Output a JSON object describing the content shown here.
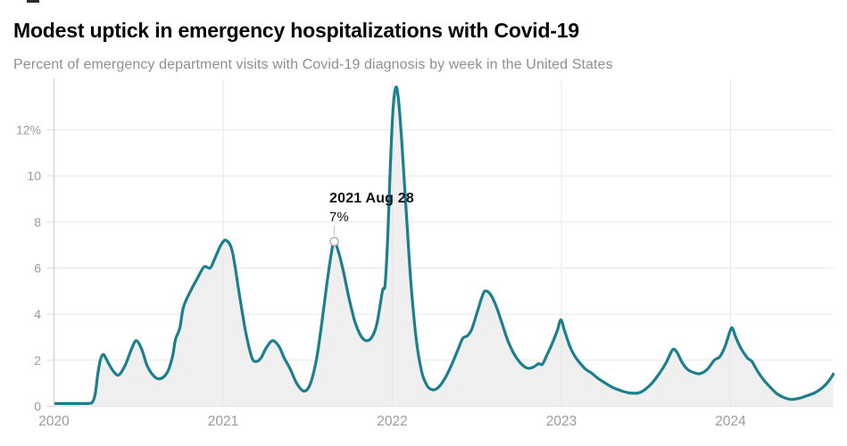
{
  "header": {
    "title": "Modest uptick in emergency hospitalizations with Covid-19",
    "subtitle": "Percent of emergency department visits with Covid-19 diagnosis by week in the United States"
  },
  "chart_data": {
    "type": "area",
    "title": "Modest uptick in emergency hospitalizations with Covid-19",
    "subtitle": "Percent of emergency department visits with Covid-19 diagnosis by week in the United States",
    "xlabel": "",
    "ylabel": "Percent of emergency department visits",
    "xlim": [
      2020.0,
      2024.62
    ],
    "ylim": [
      0,
      14
    ],
    "grid": true,
    "legend_position": "none",
    "x_ticks": [
      [
        2020,
        "2020"
      ],
      [
        2021,
        "2021"
      ],
      [
        2022,
        "2022"
      ],
      [
        2023,
        "2023"
      ],
      [
        2024,
        "2024"
      ]
    ],
    "y_ticks": [
      [
        0,
        "0"
      ],
      [
        2,
        "2"
      ],
      [
        4,
        "4"
      ],
      [
        6,
        "6"
      ],
      [
        8,
        "8"
      ],
      [
        10,
        "10"
      ],
      [
        12,
        "12%"
      ]
    ],
    "colors": {
      "line": "#1b7f8e",
      "fill": "#efefef",
      "grid": "#e7e7e7",
      "axis": "#cfcfcf",
      "baseline": "#dcdcdc",
      "tick_text": "#9b9b9b",
      "marker_stroke": "#ababab",
      "annotation_text": "#131313"
    },
    "annotation": {
      "date": "2021 Aug 28",
      "value_label": "7%",
      "x": 2021.657,
      "value_pct": 7
    },
    "series": [
      {
        "name": "Percent of ED visits with Covid-19 diagnosis",
        "points": [
          [
            2020.01,
            0.12
          ],
          [
            2020.1,
            0.12
          ],
          [
            2020.19,
            0.12
          ],
          [
            2020.211,
            0.13
          ],
          [
            2020.227,
            0.18
          ],
          [
            2020.243,
            0.5
          ],
          [
            2020.259,
            1.4
          ],
          [
            2020.274,
            2.0
          ],
          [
            2020.29,
            2.25
          ],
          [
            2020.306,
            2.1
          ],
          [
            2020.327,
            1.8
          ],
          [
            2020.359,
            1.45
          ],
          [
            2020.385,
            1.37
          ],
          [
            2020.422,
            1.8
          ],
          [
            2020.459,
            2.5
          ],
          [
            2020.486,
            2.85
          ],
          [
            2020.517,
            2.5
          ],
          [
            2020.549,
            1.8
          ],
          [
            2020.58,
            1.4
          ],
          [
            2020.612,
            1.2
          ],
          [
            2020.644,
            1.25
          ],
          [
            2020.675,
            1.55
          ],
          [
            2020.702,
            2.2
          ],
          [
            2020.718,
            2.9
          ],
          [
            2020.744,
            3.4
          ],
          [
            2020.765,
            4.3
          ],
          [
            2020.807,
            5.0
          ],
          [
            2020.844,
            5.5
          ],
          [
            2020.887,
            6.05
          ],
          [
            2020.923,
            6.0
          ],
          [
            2020.95,
            6.4
          ],
          [
            2020.987,
            7.0
          ],
          [
            2021.018,
            7.2
          ],
          [
            2021.055,
            6.7
          ],
          [
            2021.098,
            4.75
          ],
          [
            2021.134,
            3.2
          ],
          [
            2021.171,
            2.1
          ],
          [
            2021.198,
            1.95
          ],
          [
            2021.224,
            2.1
          ],
          [
            2021.256,
            2.55
          ],
          [
            2021.293,
            2.85
          ],
          [
            2021.33,
            2.6
          ],
          [
            2021.361,
            2.1
          ],
          [
            2021.398,
            1.6
          ],
          [
            2021.435,
            1.0
          ],
          [
            2021.477,
            0.66
          ],
          [
            2021.514,
            0.95
          ],
          [
            2021.551,
            2.0
          ],
          [
            2021.583,
            3.6
          ],
          [
            2021.615,
            5.4
          ],
          [
            2021.641,
            6.7
          ],
          [
            2021.657,
            7.15
          ],
          [
            2021.678,
            6.8
          ],
          [
            2021.71,
            5.9
          ],
          [
            2021.741,
            4.8
          ],
          [
            2021.778,
            3.7
          ],
          [
            2021.815,
            3.05
          ],
          [
            2021.847,
            2.85
          ],
          [
            2021.879,
            3.0
          ],
          [
            2021.91,
            3.6
          ],
          [
            2021.942,
            5.0
          ],
          [
            2021.958,
            5.3
          ],
          [
            2021.974,
            7.5
          ],
          [
            2021.989,
            10.5
          ],
          [
            2022.005,
            12.9
          ],
          [
            2022.021,
            13.85
          ],
          [
            2022.037,
            13.3
          ],
          [
            2022.058,
            11.3
          ],
          [
            2022.084,
            8.3
          ],
          [
            2022.111,
            5.3
          ],
          [
            2022.142,
            2.9
          ],
          [
            2022.174,
            1.5
          ],
          [
            2022.206,
            0.9
          ],
          [
            2022.237,
            0.72
          ],
          [
            2022.269,
            0.8
          ],
          [
            2022.306,
            1.15
          ],
          [
            2022.348,
            1.75
          ],
          [
            2022.385,
            2.4
          ],
          [
            2022.417,
            2.95
          ],
          [
            2022.443,
            3.05
          ],
          [
            2022.47,
            3.35
          ],
          [
            2022.507,
            4.2
          ],
          [
            2022.538,
            4.9
          ],
          [
            2022.559,
            5.0
          ],
          [
            2022.586,
            4.8
          ],
          [
            2022.617,
            4.3
          ],
          [
            2022.649,
            3.6
          ],
          [
            2022.681,
            2.9
          ],
          [
            2022.718,
            2.3
          ],
          [
            2022.755,
            1.9
          ],
          [
            2022.786,
            1.7
          ],
          [
            2022.813,
            1.65
          ],
          [
            2022.839,
            1.72
          ],
          [
            2022.865,
            1.85
          ],
          [
            2022.887,
            1.82
          ],
          [
            2022.913,
            2.2
          ],
          [
            2022.944,
            2.7
          ],
          [
            2022.976,
            3.3
          ],
          [
            2022.997,
            3.75
          ],
          [
            2023.018,
            3.3
          ],
          [
            2023.05,
            2.6
          ],
          [
            2023.082,
            2.15
          ],
          [
            2023.113,
            1.85
          ],
          [
            2023.145,
            1.6
          ],
          [
            2023.177,
            1.45
          ],
          [
            2023.219,
            1.2
          ],
          [
            2023.261,
            1.0
          ],
          [
            2023.303,
            0.82
          ],
          [
            2023.351,
            0.68
          ],
          [
            2023.403,
            0.58
          ],
          [
            2023.456,
            0.58
          ],
          [
            2023.493,
            0.72
          ],
          [
            2023.535,
            1.0
          ],
          [
            2023.577,
            1.4
          ],
          [
            2023.62,
            1.9
          ],
          [
            2023.657,
            2.45
          ],
          [
            2023.683,
            2.35
          ],
          [
            2023.714,
            1.9
          ],
          [
            2023.746,
            1.6
          ],
          [
            2023.788,
            1.45
          ],
          [
            2023.82,
            1.42
          ],
          [
            2023.862,
            1.6
          ],
          [
            2023.904,
            2.0
          ],
          [
            2023.936,
            2.15
          ],
          [
            2023.968,
            2.6
          ],
          [
            2023.994,
            3.2
          ],
          [
            2024.01,
            3.4
          ],
          [
            2024.031,
            3.0
          ],
          [
            2024.063,
            2.5
          ],
          [
            2024.1,
            2.1
          ],
          [
            2024.126,
            1.95
          ],
          [
            2024.158,
            1.55
          ],
          [
            2024.195,
            1.15
          ],
          [
            2024.232,
            0.85
          ],
          [
            2024.274,
            0.55
          ],
          [
            2024.316,
            0.38
          ],
          [
            2024.359,
            0.3
          ],
          [
            2024.406,
            0.35
          ],
          [
            2024.448,
            0.45
          ],
          [
            2024.496,
            0.58
          ],
          [
            2024.538,
            0.78
          ],
          [
            2024.57,
            1.0
          ],
          [
            2024.6,
            1.3
          ],
          [
            2024.607,
            1.4
          ]
        ]
      }
    ]
  }
}
